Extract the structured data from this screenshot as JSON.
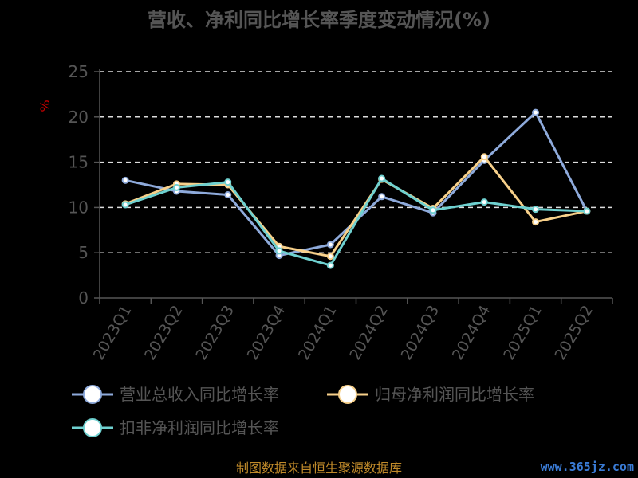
{
  "chart_data": {
    "type": "line",
    "title": "营收、净利同比增长率季度变动情况(%)",
    "ylabel": "%",
    "xlabel": "",
    "ylim": [
      0,
      25
    ],
    "yticks": [
      "0",
      "5",
      "10",
      "15",
      "20",
      "25"
    ],
    "grid": true,
    "legend_position": "bottom",
    "categories": [
      "2023Q1",
      "2023Q2",
      "2023Q3",
      "2023Q4",
      "2024Q1",
      "2024Q2",
      "2024Q3",
      "2024Q4",
      "2025Q1",
      "2025Q2"
    ],
    "series": [
      {
        "name": "营业总收入同比增长率",
        "color": "#8eaadb",
        "values": [
          13.0,
          11.8,
          11.4,
          4.7,
          5.9,
          11.2,
          9.4,
          15.2,
          20.5,
          9.6
        ]
      },
      {
        "name": "归母净利润同比增长率",
        "color": "#f7d08a",
        "values": [
          10.4,
          12.6,
          12.5,
          5.7,
          4.6,
          13.1,
          9.9,
          15.6,
          8.4,
          9.6
        ]
      },
      {
        "name": "扣非净利润同比增长率",
        "color": "#6fd1d0",
        "values": [
          10.3,
          12.2,
          12.8,
          5.2,
          3.6,
          13.2,
          9.7,
          10.6,
          9.8,
          9.6
        ]
      }
    ]
  },
  "footer": {
    "source": "制图数据来自恒生聚源数据库",
    "watermark": "www.365jz.com"
  }
}
